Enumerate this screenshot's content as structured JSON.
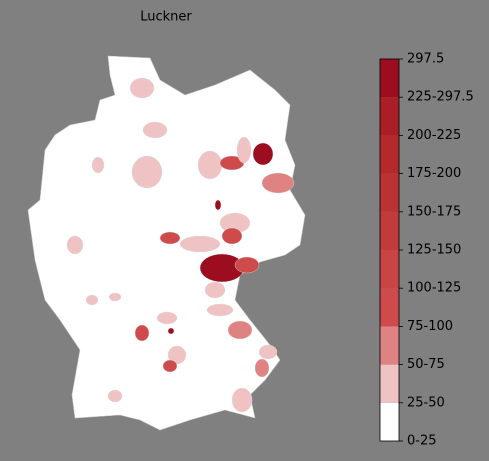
{
  "title": "Luckner",
  "colorbar": {
    "labels": [
      "0-25",
      "25-50",
      "50-75",
      "75-100",
      "100-125",
      "125-150",
      "150-175",
      "175-200",
      "200-225",
      "225-297.5",
      "297.5"
    ],
    "colors": [
      "#ffffff",
      "#efc3c3",
      "#de8282",
      "#cf4b4b",
      "#c94444",
      "#c23b3b",
      "#bb3232",
      "#b42a2a",
      "#aa1e25",
      "#9b0d1f"
    ]
  }
}
